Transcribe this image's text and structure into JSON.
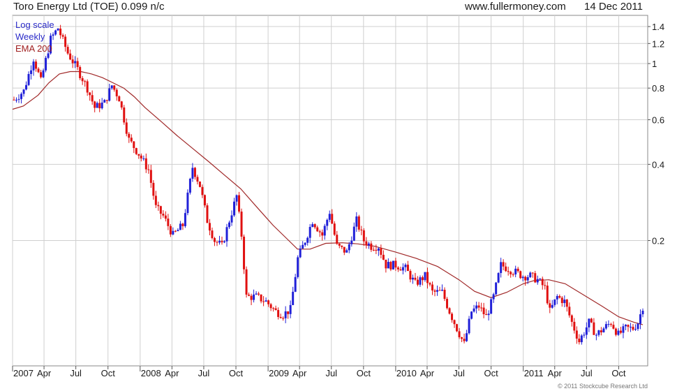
{
  "header": {
    "title": "Toro Energy Ltd (TOE) 0.099 n/c",
    "site": "www.fullermoney.com",
    "date": "14 Dec 2011"
  },
  "legend": [
    "Log scale",
    "Weekly",
    "EMA 200"
  ],
  "copyright": "© 2011 Stockcube Research Ltd",
  "colors": {
    "up": "#2020d8",
    "down": "#e01010",
    "ema": "#a02828",
    "grid": "#cfcfcf"
  },
  "chart_data": {
    "type": "candlestick",
    "yscale": "log",
    "ylim": [
      0.064,
      1.55
    ],
    "xlim": [
      "2007-01-01",
      "2011-12-23"
    ],
    "grid": true,
    "legend_placement": "top-left",
    "y_tick_labels": [
      "1.4",
      "1.2",
      "1",
      "0.8",
      "0.6",
      "0.4",
      "0.2"
    ],
    "x_tick_labels": [
      "2007",
      "Apr",
      "Jul",
      "Oct",
      "2008",
      "Apr",
      "Jul",
      "Oct",
      "2009",
      "Apr",
      "Jul",
      "Oct",
      "2010",
      "Apr",
      "Jul",
      "Oct",
      "2011",
      "Apr",
      "Jul",
      "Oct"
    ],
    "price_points": [
      [
        "2007-01-05",
        0.72
      ],
      [
        "2007-02-02",
        0.78
      ],
      [
        "2007-03-02",
        1.05
      ],
      [
        "2007-03-23",
        0.85
      ],
      [
        "2007-04-20",
        1.25
      ],
      [
        "2007-05-11",
        1.38
      ],
      [
        "2007-06-08",
        1.1
      ],
      [
        "2007-07-06",
        0.95
      ],
      [
        "2007-08-03",
        0.8
      ],
      [
        "2007-08-24",
        0.67
      ],
      [
        "2007-09-21",
        0.7
      ],
      [
        "2007-10-12",
        0.82
      ],
      [
        "2007-11-02",
        0.73
      ],
      [
        "2007-11-30",
        0.5
      ],
      [
        "2007-12-28",
        0.44
      ],
      [
        "2008-01-25",
        0.38
      ],
      [
        "2008-02-15",
        0.27
      ],
      [
        "2008-03-07",
        0.25
      ],
      [
        "2008-04-04",
        0.21
      ],
      [
        "2008-05-02",
        0.23
      ],
      [
        "2008-05-30",
        0.39
      ],
      [
        "2008-06-20",
        0.33
      ],
      [
        "2008-07-11",
        0.24
      ],
      [
        "2008-08-01",
        0.2
      ],
      [
        "2008-08-22",
        0.19
      ],
      [
        "2008-09-12",
        0.24
      ],
      [
        "2008-10-03",
        0.3
      ],
      [
        "2008-10-17",
        0.21
      ],
      [
        "2008-10-31",
        0.12
      ],
      [
        "2008-11-28",
        0.12
      ],
      [
        "2008-12-26",
        0.115
      ],
      [
        "2009-01-23",
        0.105
      ],
      [
        "2009-02-13",
        0.102
      ],
      [
        "2009-03-06",
        0.107
      ],
      [
        "2009-03-27",
        0.17
      ],
      [
        "2009-04-17",
        0.2
      ],
      [
        "2009-05-08",
        0.24
      ],
      [
        "2009-06-05",
        0.21
      ],
      [
        "2009-06-26",
        0.26
      ],
      [
        "2009-07-17",
        0.19
      ],
      [
        "2009-08-14",
        0.18
      ],
      [
        "2009-09-11",
        0.24
      ],
      [
        "2009-10-02",
        0.2
      ],
      [
        "2009-10-23",
        0.19
      ],
      [
        "2009-11-13",
        0.19
      ],
      [
        "2009-12-04",
        0.16
      ],
      [
        "2010-01-01",
        0.16
      ],
      [
        "2010-01-29",
        0.155
      ],
      [
        "2010-02-26",
        0.135
      ],
      [
        "2010-03-26",
        0.145
      ],
      [
        "2010-04-16",
        0.125
      ],
      [
        "2010-05-14",
        0.125
      ],
      [
        "2010-06-04",
        0.105
      ],
      [
        "2010-06-25",
        0.09
      ],
      [
        "2010-07-16",
        0.078
      ],
      [
        "2010-08-06",
        0.105
      ],
      [
        "2010-08-27",
        0.11
      ],
      [
        "2010-09-17",
        0.1
      ],
      [
        "2010-10-08",
        0.12
      ],
      [
        "2010-10-29",
        0.16
      ],
      [
        "2010-11-19",
        0.155
      ],
      [
        "2010-12-10",
        0.15
      ],
      [
        "2010-12-31",
        0.145
      ],
      [
        "2011-01-21",
        0.145
      ],
      [
        "2011-02-11",
        0.14
      ],
      [
        "2011-03-04",
        0.13
      ],
      [
        "2011-03-18",
        0.105
      ],
      [
        "2011-04-08",
        0.12
      ],
      [
        "2011-04-29",
        0.115
      ],
      [
        "2011-05-20",
        0.095
      ],
      [
        "2011-06-10",
        0.08
      ],
      [
        "2011-07-08",
        0.095
      ],
      [
        "2011-07-29",
        0.085
      ],
      [
        "2011-08-19",
        0.09
      ],
      [
        "2011-09-09",
        0.095
      ],
      [
        "2011-09-30",
        0.085
      ],
      [
        "2011-10-21",
        0.09
      ],
      [
        "2011-11-11",
        0.09
      ],
      [
        "2011-11-25",
        0.095
      ],
      [
        "2011-12-09",
        0.11
      ]
    ],
    "ema_200": [
      [
        "2007-01-01",
        0.66
      ],
      [
        "2007-02-01",
        0.68
      ],
      [
        "2007-03-15",
        0.75
      ],
      [
        "2007-04-15",
        0.84
      ],
      [
        "2007-05-15",
        0.91
      ],
      [
        "2007-06-15",
        0.93
      ],
      [
        "2007-07-15",
        0.93
      ],
      [
        "2007-08-15",
        0.91
      ],
      [
        "2007-09-15",
        0.88
      ],
      [
        "2007-10-15",
        0.84
      ],
      [
        "2007-11-15",
        0.8
      ],
      [
        "2007-12-15",
        0.74
      ],
      [
        "2008-01-15",
        0.67
      ],
      [
        "2008-03-01",
        0.59
      ],
      [
        "2008-04-15",
        0.52
      ],
      [
        "2008-06-01",
        0.46
      ],
      [
        "2008-07-15",
        0.41
      ],
      [
        "2008-09-01",
        0.36
      ],
      [
        "2008-10-15",
        0.32
      ],
      [
        "2008-12-01",
        0.27
      ],
      [
        "2009-01-15",
        0.23
      ],
      [
        "2009-03-01",
        0.2
      ],
      [
        "2009-03-26",
        0.185
      ],
      [
        "2009-05-01",
        0.185
      ],
      [
        "2009-06-15",
        0.195
      ],
      [
        "2009-08-01",
        0.196
      ],
      [
        "2009-09-15",
        0.194
      ],
      [
        "2009-11-01",
        0.19
      ],
      [
        "2010-01-01",
        0.18
      ],
      [
        "2010-03-01",
        0.17
      ],
      [
        "2010-05-01",
        0.158
      ],
      [
        "2010-07-01",
        0.14
      ],
      [
        "2010-08-15",
        0.126
      ],
      [
        "2010-10-01",
        0.119
      ],
      [
        "2010-11-15",
        0.125
      ],
      [
        "2011-01-01",
        0.135
      ],
      [
        "2011-02-01",
        0.139
      ],
      [
        "2011-03-15",
        0.14
      ],
      [
        "2011-05-01",
        0.135
      ],
      [
        "2011-07-01",
        0.12
      ],
      [
        "2011-08-15",
        0.11
      ],
      [
        "2011-10-01",
        0.1
      ],
      [
        "2011-11-15",
        0.095
      ],
      [
        "2011-12-09",
        0.093
      ]
    ]
  }
}
